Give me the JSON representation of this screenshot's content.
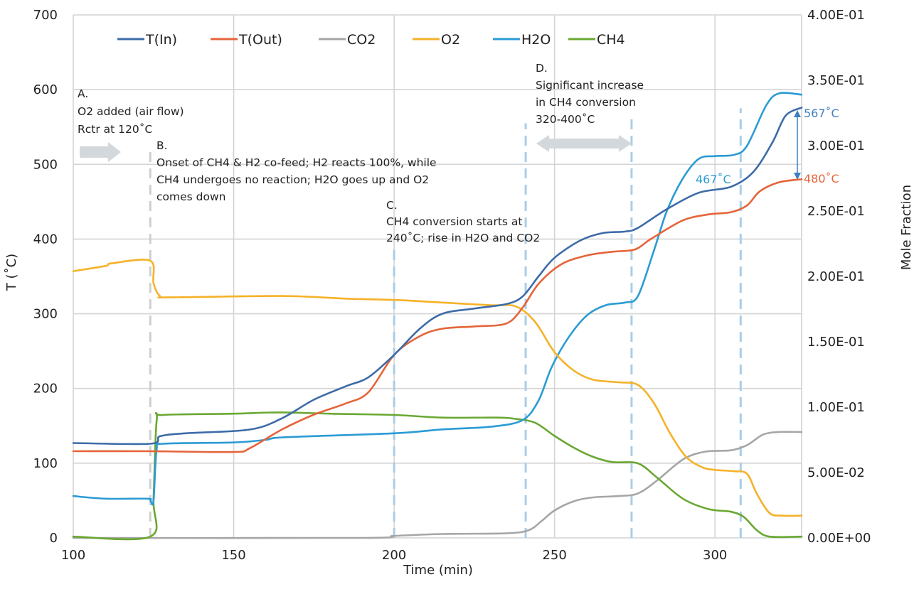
{
  "chart_data": {
    "type": "line",
    "xlabel": "Time (min)",
    "ylabel": "T (˚C)",
    "y2label": "Mole Fraction",
    "xlim": [
      100,
      327
    ],
    "ylim": [
      0,
      700
    ],
    "y2lim": [
      0,
      0.4
    ],
    "x_ticks": [
      100,
      150,
      200,
      250,
      300
    ],
    "x_tick_labels": [
      "100",
      "150",
      "200",
      "250",
      "300"
    ],
    "y_ticks": [
      0,
      100,
      200,
      300,
      400,
      500,
      600,
      700
    ],
    "y_tick_labels": [
      "0",
      "100",
      "200",
      "300",
      "400",
      "500",
      "600",
      "700"
    ],
    "y2_ticks": [
      0,
      0.05,
      0.1,
      0.15,
      0.2,
      0.25,
      0.3,
      0.35,
      0.4
    ],
    "y2_tick_labels": [
      "0.00E+00",
      "5.00E-02",
      "1.00E-01",
      "1.50E-01",
      "2.00E-01",
      "2.50E-01",
      "3.00E-01",
      "3.50E-01",
      "4.00E-01"
    ],
    "grid": true,
    "legend_position": "top",
    "series": [
      {
        "name": "T(In)",
        "axis": "left",
        "color": "#3d6ba8",
        "points": [
          [
            100,
            127
          ],
          [
            124,
            126
          ],
          [
            127,
            136
          ],
          [
            135,
            140
          ],
          [
            155,
            145
          ],
          [
            165,
            160
          ],
          [
            175,
            185
          ],
          [
            185,
            203
          ],
          [
            192,
            215
          ],
          [
            200,
            245
          ],
          [
            208,
            280
          ],
          [
            215,
            300
          ],
          [
            225,
            307
          ],
          [
            235,
            313
          ],
          [
            240,
            323
          ],
          [
            245,
            350
          ],
          [
            250,
            375
          ],
          [
            258,
            398
          ],
          [
            265,
            408
          ],
          [
            272,
            410
          ],
          [
            276,
            415
          ],
          [
            285,
            440
          ],
          [
            295,
            462
          ],
          [
            305,
            470
          ],
          [
            312,
            490
          ],
          [
            318,
            530
          ],
          [
            322,
            565
          ],
          [
            327,
            576
          ]
        ]
      },
      {
        "name": "T(Out)",
        "axis": "left",
        "color": "#e5643a",
        "points": [
          [
            100,
            116
          ],
          [
            124,
            116
          ],
          [
            150,
            115
          ],
          [
            155,
            120
          ],
          [
            165,
            145
          ],
          [
            175,
            165
          ],
          [
            185,
            180
          ],
          [
            192,
            195
          ],
          [
            200,
            245
          ],
          [
            208,
            270
          ],
          [
            215,
            280
          ],
          [
            225,
            283
          ],
          [
            235,
            287
          ],
          [
            240,
            308
          ],
          [
            245,
            340
          ],
          [
            252,
            366
          ],
          [
            260,
            378
          ],
          [
            268,
            383
          ],
          [
            275,
            386
          ],
          [
            280,
            400
          ],
          [
            290,
            425
          ],
          [
            298,
            433
          ],
          [
            305,
            436
          ],
          [
            310,
            445
          ],
          [
            314,
            464
          ],
          [
            320,
            476
          ],
          [
            327,
            480
          ]
        ]
      },
      {
        "name": "CO2",
        "axis": "right",
        "color": "#a6a6a6",
        "points": [
          [
            100,
            0
          ],
          [
            190,
            0
          ],
          [
            200,
            0.0015
          ],
          [
            215,
            0.003
          ],
          [
            235,
            0.0035
          ],
          [
            242,
            0.006
          ],
          [
            246,
            0.013
          ],
          [
            250,
            0.021
          ],
          [
            256,
            0.028
          ],
          [
            262,
            0.031
          ],
          [
            270,
            0.032
          ],
          [
            276,
            0.034
          ],
          [
            282,
            0.044
          ],
          [
            290,
            0.06
          ],
          [
            297,
            0.066
          ],
          [
            305,
            0.067
          ],
          [
            310,
            0.071
          ],
          [
            315,
            0.079
          ],
          [
            320,
            0.081
          ],
          [
            327,
            0.081
          ]
        ]
      },
      {
        "name": "O2",
        "axis": "right",
        "color": "#f5b229",
        "points": [
          [
            100,
            0.204
          ],
          [
            110,
            0.208
          ],
          [
            112,
            0.21
          ],
          [
            124,
            0.212
          ],
          [
            125,
            0.195
          ],
          [
            127,
            0.185
          ],
          [
            130,
            0.184
          ],
          [
            165,
            0.185
          ],
          [
            185,
            0.183
          ],
          [
            200,
            0.182
          ],
          [
            215,
            0.18
          ],
          [
            230,
            0.178
          ],
          [
            238,
            0.177
          ],
          [
            244,
            0.165
          ],
          [
            250,
            0.142
          ],
          [
            256,
            0.128
          ],
          [
            262,
            0.121
          ],
          [
            270,
            0.119
          ],
          [
            276,
            0.117
          ],
          [
            281,
            0.103
          ],
          [
            286,
            0.08
          ],
          [
            291,
            0.062
          ],
          [
            296,
            0.054
          ],
          [
            300,
            0.052
          ],
          [
            306,
            0.051
          ],
          [
            310,
            0.049
          ],
          [
            313,
            0.034
          ],
          [
            317,
            0.019
          ],
          [
            321,
            0.017
          ],
          [
            327,
            0.017
          ]
        ]
      },
      {
        "name": "H2O",
        "axis": "right",
        "color": "#2b9bd4",
        "points": [
          [
            100,
            0.032
          ],
          [
            110,
            0.03
          ],
          [
            123,
            0.03
          ],
          [
            124,
            0.029
          ],
          [
            125,
            0.028
          ],
          [
            126,
            0.068
          ],
          [
            128,
            0.072
          ],
          [
            150,
            0.073
          ],
          [
            160,
            0.075
          ],
          [
            166,
            0.077
          ],
          [
            200,
            0.08
          ],
          [
            215,
            0.083
          ],
          [
            230,
            0.085
          ],
          [
            240,
            0.09
          ],
          [
            245,
            0.105
          ],
          [
            249,
            0.13
          ],
          [
            254,
            0.152
          ],
          [
            260,
            0.17
          ],
          [
            266,
            0.178
          ],
          [
            272,
            0.18
          ],
          [
            276,
            0.185
          ],
          [
            281,
            0.22
          ],
          [
            285,
            0.25
          ],
          [
            290,
            0.275
          ],
          [
            295,
            0.29
          ],
          [
            300,
            0.292
          ],
          [
            306,
            0.293
          ],
          [
            310,
            0.3
          ],
          [
            316,
            0.331
          ],
          [
            320,
            0.34
          ],
          [
            327,
            0.339
          ]
        ]
      },
      {
        "name": "CH4",
        "axis": "right",
        "color": "#6aa832",
        "points": [
          [
            100,
            0.001
          ],
          [
            124,
            0.001
          ],
          [
            125,
            0.03
          ],
          [
            126,
            0.09
          ],
          [
            128,
            0.094
          ],
          [
            150,
            0.095
          ],
          [
            164,
            0.096
          ],
          [
            180,
            0.095
          ],
          [
            200,
            0.094
          ],
          [
            215,
            0.092
          ],
          [
            232,
            0.092
          ],
          [
            238,
            0.091
          ],
          [
            244,
            0.088
          ],
          [
            250,
            0.078
          ],
          [
            256,
            0.069
          ],
          [
            262,
            0.062
          ],
          [
            268,
            0.058
          ],
          [
            276,
            0.057
          ],
          [
            282,
            0.046
          ],
          [
            290,
            0.03
          ],
          [
            298,
            0.022
          ],
          [
            305,
            0.02
          ],
          [
            309,
            0.016
          ],
          [
            313,
            0.006
          ],
          [
            317,
            0.001
          ],
          [
            327,
            0.001
          ]
        ]
      }
    ],
    "vertical_markers": [
      {
        "x": 124,
        "color": "#cfcfcf",
        "y_from": 0,
        "y_to": 520
      },
      {
        "x": 200,
        "color": "#a9cde8",
        "y_from": 0,
        "y_to": 393
      },
      {
        "x": 241,
        "color": "#a9cde8",
        "y_from": 0,
        "y_to": 555
      },
      {
        "x": 274,
        "color": "#a9cde8",
        "y_from": 0,
        "y_to": 565
      },
      {
        "x": 308,
        "color": "#a9cde8",
        "y_from": 0,
        "y_to": 575
      }
    ],
    "annotations": [
      {
        "id": "a",
        "lines": [
          "A.",
          "O2 added (air flow)",
          "Rctr at 120˚C"
        ]
      },
      {
        "id": "b",
        "lines": [
          "B.",
          "Onset of CH4 & H2 co-feed; H2 reacts 100%, while",
          "CH4 undergoes no reaction; H2O goes up and O2",
          "comes down"
        ]
      },
      {
        "id": "c",
        "lines": [
          "C.",
          "CH4 conversion starts at",
          "240˚C; rise in H2O and CO2"
        ]
      },
      {
        "id": "d",
        "lines": [
          "D.",
          "Significant increase",
          "in CH4 conversion",
          "320-400˚C"
        ]
      }
    ],
    "temperature_labels": [
      {
        "text": "567˚C",
        "color": "#3d7fc1"
      },
      {
        "text": "480˚C",
        "color": "#e5643a"
      },
      {
        "text": "467˚C",
        "color": "#2b9bd4"
      }
    ]
  }
}
